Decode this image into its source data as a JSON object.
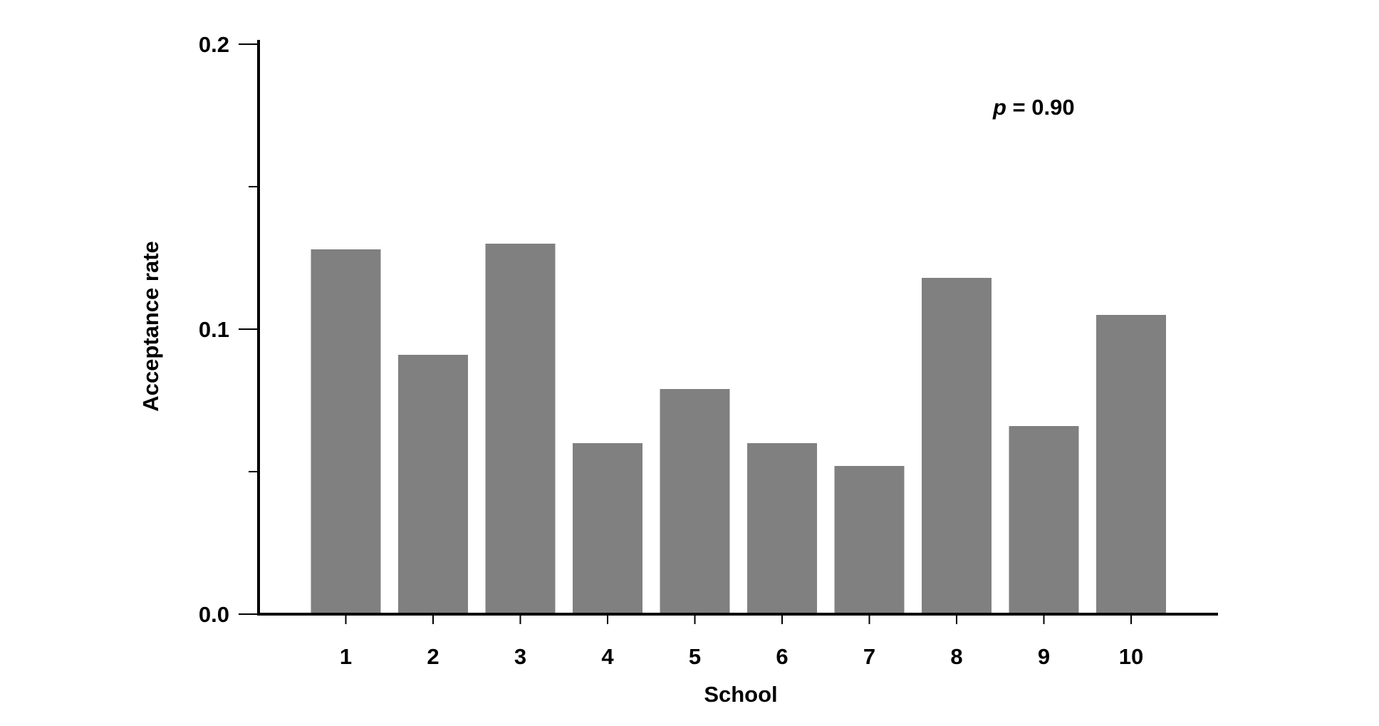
{
  "chart_data": {
    "type": "bar",
    "title": "",
    "xlabel": "School",
    "ylabel": "Acceptance rate",
    "categories": [
      "1",
      "2",
      "3",
      "4",
      "5",
      "6",
      "7",
      "8",
      "9",
      "10"
    ],
    "values": [
      0.128,
      0.091,
      0.13,
      0.06,
      0.079,
      0.06,
      0.052,
      0.118,
      0.066,
      0.105
    ],
    "ylim": [
      0,
      0.2
    ],
    "yticks": [
      {
        "value": 0.0,
        "label": "0.0"
      },
      {
        "value": 0.1,
        "label": "0.1"
      },
      {
        "value": 0.2,
        "label": "0.2"
      }
    ],
    "yminor_ticks": [
      0.05,
      0.15
    ],
    "annotation": {
      "italic": "p",
      "rest": " = 0.90"
    },
    "bar_color": "#808080",
    "grid": false,
    "legend": "none"
  }
}
